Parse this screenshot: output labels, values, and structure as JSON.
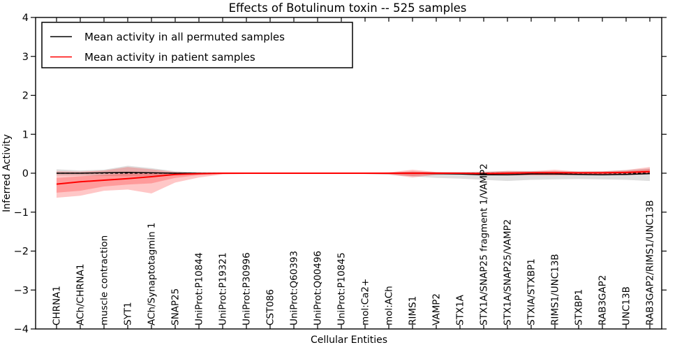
{
  "chart_data": {
    "type": "line",
    "title": "Effects of Botulinum toxin -- 525 samples",
    "xlabel": "Cellular Entities",
    "ylabel": "Inferred Activity",
    "ylim": [
      -4,
      4
    ],
    "yticks": [
      4,
      3,
      2,
      1,
      0,
      -1,
      -2,
      -3,
      -4
    ],
    "grid": false,
    "legend_position": "upper-left",
    "zero_reference": {
      "value": 0,
      "style": "dashed",
      "color": "#000000"
    },
    "categories": [
      "CHRNA1",
      "ACh/CHRNA1",
      "muscle contraction",
      "SYT1",
      "ACh/Synaptotagmin 1",
      "SNAP25",
      "UniProt:P10844",
      "UniProt:P19321",
      "UniProt:P30996",
      "CST086",
      "UniProt:Q60393",
      "UniProt:Q00496",
      "UniProt:P10845",
      "mol:Ca2+",
      "mol:ACh",
      "RIMS1",
      "VAMP2",
      "STX1A",
      "STX1A/SNAP25 fragment 1/VAMP2",
      "STX1A/SNAP25/VAMP2",
      "STXIA/STXBP1",
      "RIMS1/UNC13B",
      "STXBP1",
      "RAB3GAP2",
      "UNC13B",
      "RAB3GAP2/RIMS1/UNC13B"
    ],
    "series": [
      {
        "name": "Mean activity in all permuted samples",
        "color": "#000000",
        "line_style": "solid",
        "values": [
          0,
          0,
          0.01,
          0.02,
          0.01,
          0,
          0,
          0,
          0,
          0,
          0,
          0,
          0,
          0,
          0,
          0,
          -0.01,
          -0.02,
          -0.04,
          -0.04,
          -0.02,
          -0.02,
          -0.03,
          -0.04,
          -0.03,
          -0.01
        ],
        "band": {
          "color": "#000000",
          "opacity": 0.13,
          "upper": [
            0.1,
            0.07,
            0.09,
            0.19,
            0.13,
            0.05,
            0.02,
            0.01,
            0.01,
            0.01,
            0.01,
            0.01,
            0.01,
            0.01,
            0.02,
            0.04,
            0.03,
            0.03,
            0.04,
            0.06,
            0.06,
            0.05,
            0.05,
            0.05,
            0.08,
            0.12
          ],
          "lower": [
            -0.06,
            -0.06,
            -0.07,
            -0.08,
            -0.07,
            -0.05,
            -0.02,
            -0.01,
            -0.01,
            -0.01,
            -0.01,
            -0.01,
            -0.01,
            -0.02,
            -0.04,
            -0.08,
            -0.12,
            -0.14,
            -0.17,
            -0.2,
            -0.17,
            -0.16,
            -0.15,
            -0.16,
            -0.17,
            -0.2
          ]
        }
      },
      {
        "name": "Mean activity in patient samples",
        "color": "#ff0000",
        "line_style": "solid",
        "values": [
          -0.28,
          -0.22,
          -0.18,
          -0.14,
          -0.09,
          -0.03,
          -0.01,
          0,
          0,
          0,
          0,
          0,
          0,
          0,
          0,
          0,
          0,
          0,
          -0.01,
          0,
          0.01,
          0.01,
          0.01,
          0.01,
          0.02,
          0.04
        ],
        "band_outer": {
          "color": "#ff0000",
          "opacity": 0.22,
          "upper": [
            0.05,
            0.04,
            0.07,
            0.16,
            0.1,
            0.03,
            0.01,
            0.01,
            0.01,
            0.01,
            0.01,
            0.01,
            0.01,
            0.01,
            0.02,
            0.09,
            0.03,
            0.02,
            0.03,
            0.06,
            0.05,
            0.09,
            0.04,
            0.05,
            0.08,
            0.16
          ],
          "lower": [
            -0.63,
            -0.58,
            -0.45,
            -0.42,
            -0.52,
            -0.24,
            -0.11,
            -0.03,
            -0.02,
            -0.02,
            -0.02,
            -0.02,
            -0.02,
            -0.02,
            -0.03,
            -0.11,
            -0.04,
            -0.03,
            -0.05,
            -0.06,
            -0.06,
            -0.06,
            -0.05,
            -0.05,
            -0.05,
            -0.03
          ],
          "upper_i": [
            -0.12,
            -0.08,
            -0.04,
            -0.01,
            -0.01,
            0,
            0,
            0,
            0,
            0,
            0,
            0,
            0,
            0,
            0.01,
            0.05,
            0.02,
            0.01,
            0.02,
            0.03,
            0.03,
            0.05,
            0.02,
            0.03,
            0.05,
            0.1
          ],
          "lower_i": [
            -0.5,
            -0.45,
            -0.34,
            -0.29,
            -0.26,
            -0.12,
            -0.05,
            -0.02,
            -0.01,
            -0.01,
            -0.01,
            -0.01,
            -0.01,
            -0.01,
            -0.02,
            -0.07,
            -0.03,
            -0.02,
            -0.03,
            -0.04,
            -0.04,
            -0.04,
            -0.03,
            -0.03,
            -0.03,
            -0.02
          ]
        }
      }
    ]
  },
  "legend": {
    "entries": [
      {
        "label": "Mean activity in all permuted samples",
        "color": "#000000"
      },
      {
        "label": "Mean activity in patient samples",
        "color": "#ff0000"
      }
    ]
  },
  "colors": {
    "background": "#ffffff",
    "axis": "#000000",
    "permuted_line": "#000000",
    "patient_line": "#ff0000"
  }
}
